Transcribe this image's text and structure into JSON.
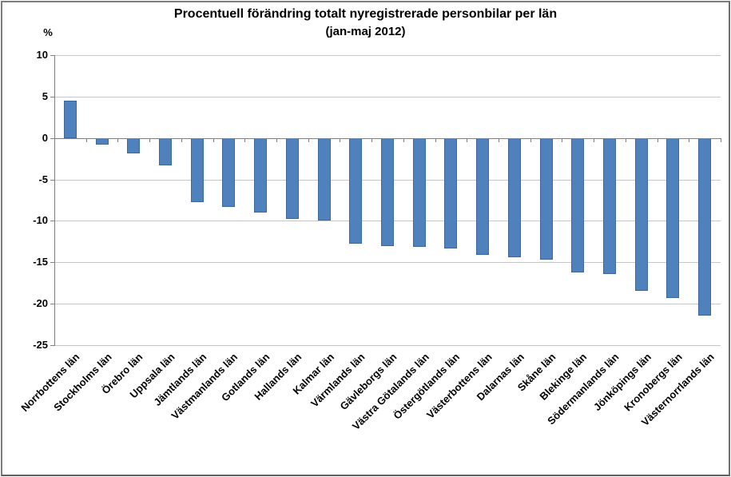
{
  "chart_data": {
    "type": "bar",
    "title": "Procentuell förändring totalt nyregistrerade personbilar per län",
    "subtitle": "(jan-maj 2012)",
    "unit_label": "%",
    "categories": [
      "Norrbottens län",
      "Stockholms län",
      "Örebro län",
      "Uppsala län",
      "Jämtlands län",
      "Västmanlands län",
      "Gotlands län",
      "Hallands län",
      "Kalmar län",
      "Värmlands län",
      "Gävleborgs län",
      "Västra Götalands län",
      "Östergötlands län",
      "Västerbottens län",
      "Dalarnas län",
      "Skåne län",
      "Blekinge län",
      "Södermanlands län",
      "Jönköpings län",
      "Kronobergs län",
      "Västernorrlands län"
    ],
    "values": [
      4.5,
      -0.8,
      -1.8,
      -3.3,
      -7.7,
      -8.3,
      -9.0,
      -9.7,
      -9.9,
      -12.7,
      -13.0,
      -13.1,
      -13.3,
      -14.1,
      -14.4,
      -14.7,
      -16.2,
      -16.4,
      -18.4,
      -19.3,
      -21.4
    ],
    "xlabel": "",
    "ylabel": "%",
    "ylim": [
      -25,
      10
    ],
    "yticks": [
      10,
      5,
      0,
      -5,
      -10,
      -15,
      -20,
      -25
    ],
    "grid": true,
    "legend": "none",
    "bar_color": "#4F81BD",
    "bar_border_color": "#3f689c",
    "gridline_color": "#c7c7c7",
    "axis_color": "#808080"
  }
}
